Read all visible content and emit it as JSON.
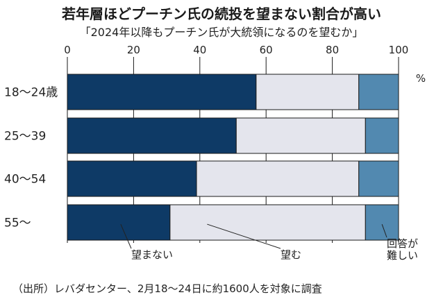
{
  "title": "若年層ほどプーチン氏の続投を望まない割合が高い",
  "subtitle": "「2024年以降もプーチン氏が大統領になるのを望むか」",
  "source": "（出所）レバダセンター、2月18～24日に約1600人を対象に調査",
  "chart_data": {
    "type": "bar",
    "orientation": "horizontal",
    "stacked": true,
    "title": "若年層ほどプーチン氏の続投を望まない割合が高い",
    "subtitle": "「2024年以降もプーチン氏が大統領になるのを望むか」",
    "unit": "%",
    "xlim": [
      0,
      100
    ],
    "x_ticks": [
      0,
      20,
      40,
      60,
      80,
      100
    ],
    "categories": [
      "18～24歳",
      "25～39",
      "40～54",
      "55～"
    ],
    "series": [
      {
        "name": "望まない",
        "values": [
          57,
          51,
          39,
          31
        ]
      },
      {
        "name": "望む",
        "values": [
          31,
          39,
          49,
          59
        ]
      },
      {
        "name": "回答が難しい",
        "values": [
          12,
          10,
          12,
          10
        ]
      }
    ],
    "legend_placement": "callouts-below-last-bar",
    "grid": true
  },
  "colors": {
    "series": [
      "#0e3a66",
      "#e4e5ed",
      "#5289b0"
    ],
    "bar_border": "#1a1a1a",
    "grid": "#1a1a1a"
  }
}
